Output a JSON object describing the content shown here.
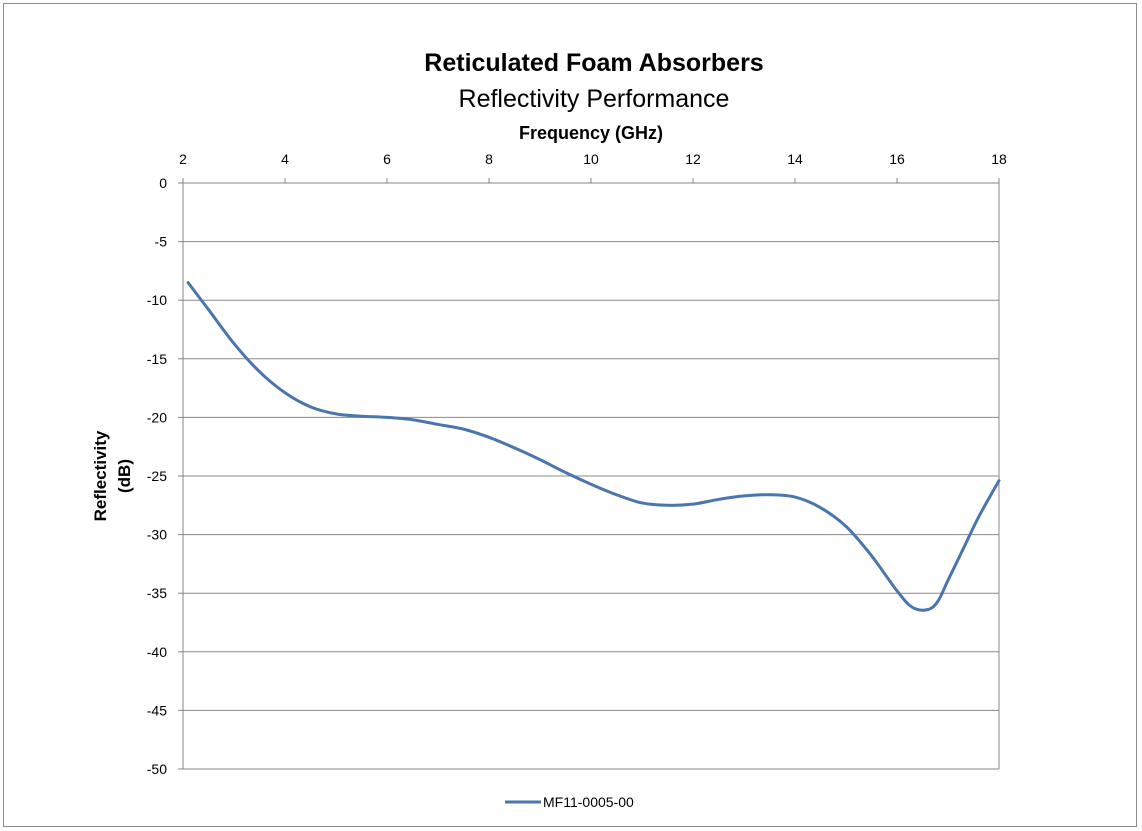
{
  "chart_data": {
    "type": "line",
    "title": "Reticulated Foam Absorbers",
    "subtitle": "Reflectivity Performance",
    "xlabel": "Frequency (GHz)",
    "ylabel": [
      "Reflectivity",
      "(dB)"
    ],
    "xlim": [
      2,
      18
    ],
    "ylim": [
      -50,
      0
    ],
    "x_axis_position": "top",
    "x_ticks": [
      2,
      4,
      6,
      8,
      10,
      12,
      14,
      16,
      18
    ],
    "y_ticks": [
      0,
      -5,
      -10,
      -15,
      -20,
      -25,
      -30,
      -35,
      -40,
      -45,
      -50
    ],
    "grid": "horizontal",
    "legend_position": "bottom-center",
    "series": [
      {
        "name": "MF11-0005-00",
        "color": "#4a76ad",
        "x": [
          2.1,
          2.5,
          3.0,
          3.5,
          4.0,
          4.5,
          5.0,
          5.5,
          6.0,
          6.5,
          7.0,
          7.5,
          8.0,
          8.5,
          9.0,
          9.5,
          10.0,
          10.5,
          11.0,
          11.5,
          12.0,
          12.5,
          13.0,
          13.5,
          14.0,
          14.5,
          15.0,
          15.5,
          16.0,
          16.3,
          16.6,
          16.8,
          17.0,
          17.3,
          17.6,
          18.0
        ],
        "y": [
          -8.5,
          -10.8,
          -13.7,
          -16.1,
          -17.9,
          -19.1,
          -19.7,
          -19.9,
          -20.0,
          -20.2,
          -20.6,
          -21.0,
          -21.7,
          -22.6,
          -23.6,
          -24.7,
          -25.7,
          -26.6,
          -27.3,
          -27.5,
          -27.4,
          -27.0,
          -26.7,
          -26.6,
          -26.8,
          -27.7,
          -29.3,
          -31.8,
          -34.8,
          -36.2,
          -36.4,
          -35.7,
          -33.9,
          -31.2,
          -28.5,
          -25.4
        ]
      }
    ]
  }
}
